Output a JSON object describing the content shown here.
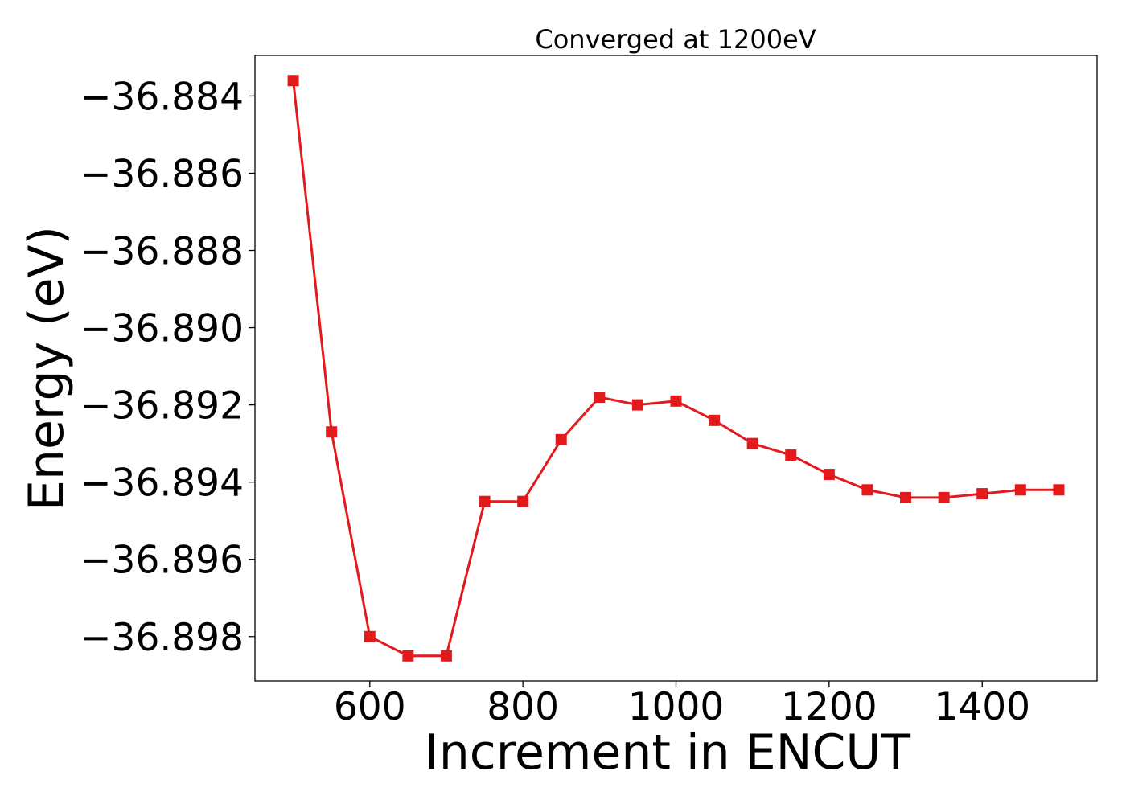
{
  "chart_data": {
    "type": "line",
    "title": "Converged at 1200eV",
    "xlabel": "Increment in ENCUT",
    "ylabel": "Energy (eV)",
    "xlim": [
      450,
      1550
    ],
    "ylim": [
      -36.89915,
      -36.88295
    ],
    "x_ticks": [
      600,
      800,
      1000,
      1200,
      1400
    ],
    "y_ticks": [
      -36.884,
      -36.886,
      -36.888,
      -36.89,
      -36.892,
      -36.894,
      -36.896,
      -36.898
    ],
    "y_tick_labels": [
      "−36.884",
      "−36.886",
      "−36.888",
      "−36.890",
      "−36.892",
      "−36.894",
      "−36.896",
      "−36.898"
    ],
    "grid": false,
    "series": [
      {
        "color": "#e31a1c",
        "marker": "square",
        "x": [
          500,
          550,
          600,
          650,
          700,
          750,
          800,
          850,
          900,
          950,
          1000,
          1050,
          1100,
          1150,
          1200,
          1250,
          1300,
          1350,
          1400,
          1450,
          1500
        ],
        "y": [
          -36.8836,
          -36.8927,
          -36.898,
          -36.8985,
          -36.8985,
          -36.8945,
          -36.8945,
          -36.8929,
          -36.8918,
          -36.892,
          -36.8919,
          -36.8924,
          -36.893,
          -36.8933,
          -36.8938,
          -36.8942,
          -36.8944,
          -36.8944,
          -36.8943,
          -36.8942,
          -36.8942
        ]
      }
    ]
  }
}
